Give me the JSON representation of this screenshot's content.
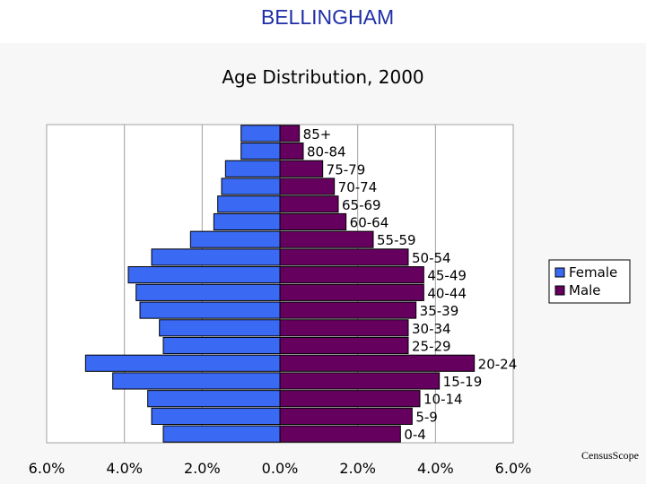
{
  "page": {
    "title": "BELLINGHAM",
    "credit": "CensusScope"
  },
  "colors": {
    "female": "#3a69f4",
    "male": "#66005e",
    "title": "#1f2fa8"
  },
  "chart_data": {
    "type": "bar",
    "orientation": "horizontal",
    "title": "Age Distribution, 2000",
    "xlabel": "",
    "ylabel": "",
    "xlim": [
      -6.0,
      6.0
    ],
    "x_ticks": [
      "6.0%",
      "4.0%",
      "2.0%",
      "0.0%",
      "2.0%",
      "4.0%",
      "6.0%"
    ],
    "grid": true,
    "legend_position": "right",
    "categories": [
      "0-4",
      "5-9",
      "10-14",
      "15-19",
      "20-24",
      "25-29",
      "30-34",
      "35-39",
      "40-44",
      "45-49",
      "50-54",
      "55-59",
      "60-64",
      "65-69",
      "70-74",
      "75-79",
      "80-84",
      "85+"
    ],
    "series": [
      {
        "name": "Female",
        "color": "#3a69f4",
        "values": [
          3.0,
          3.3,
          3.4,
          4.3,
          5.0,
          3.0,
          3.1,
          3.6,
          3.7,
          3.9,
          3.3,
          2.3,
          1.7,
          1.6,
          1.5,
          1.4,
          1.0,
          1.0
        ]
      },
      {
        "name": "Male",
        "color": "#66005e",
        "values": [
          3.1,
          3.4,
          3.6,
          4.1,
          5.0,
          3.3,
          3.3,
          3.5,
          3.7,
          3.7,
          3.3,
          2.4,
          1.7,
          1.5,
          1.4,
          1.1,
          0.6,
          0.5
        ]
      }
    ]
  }
}
